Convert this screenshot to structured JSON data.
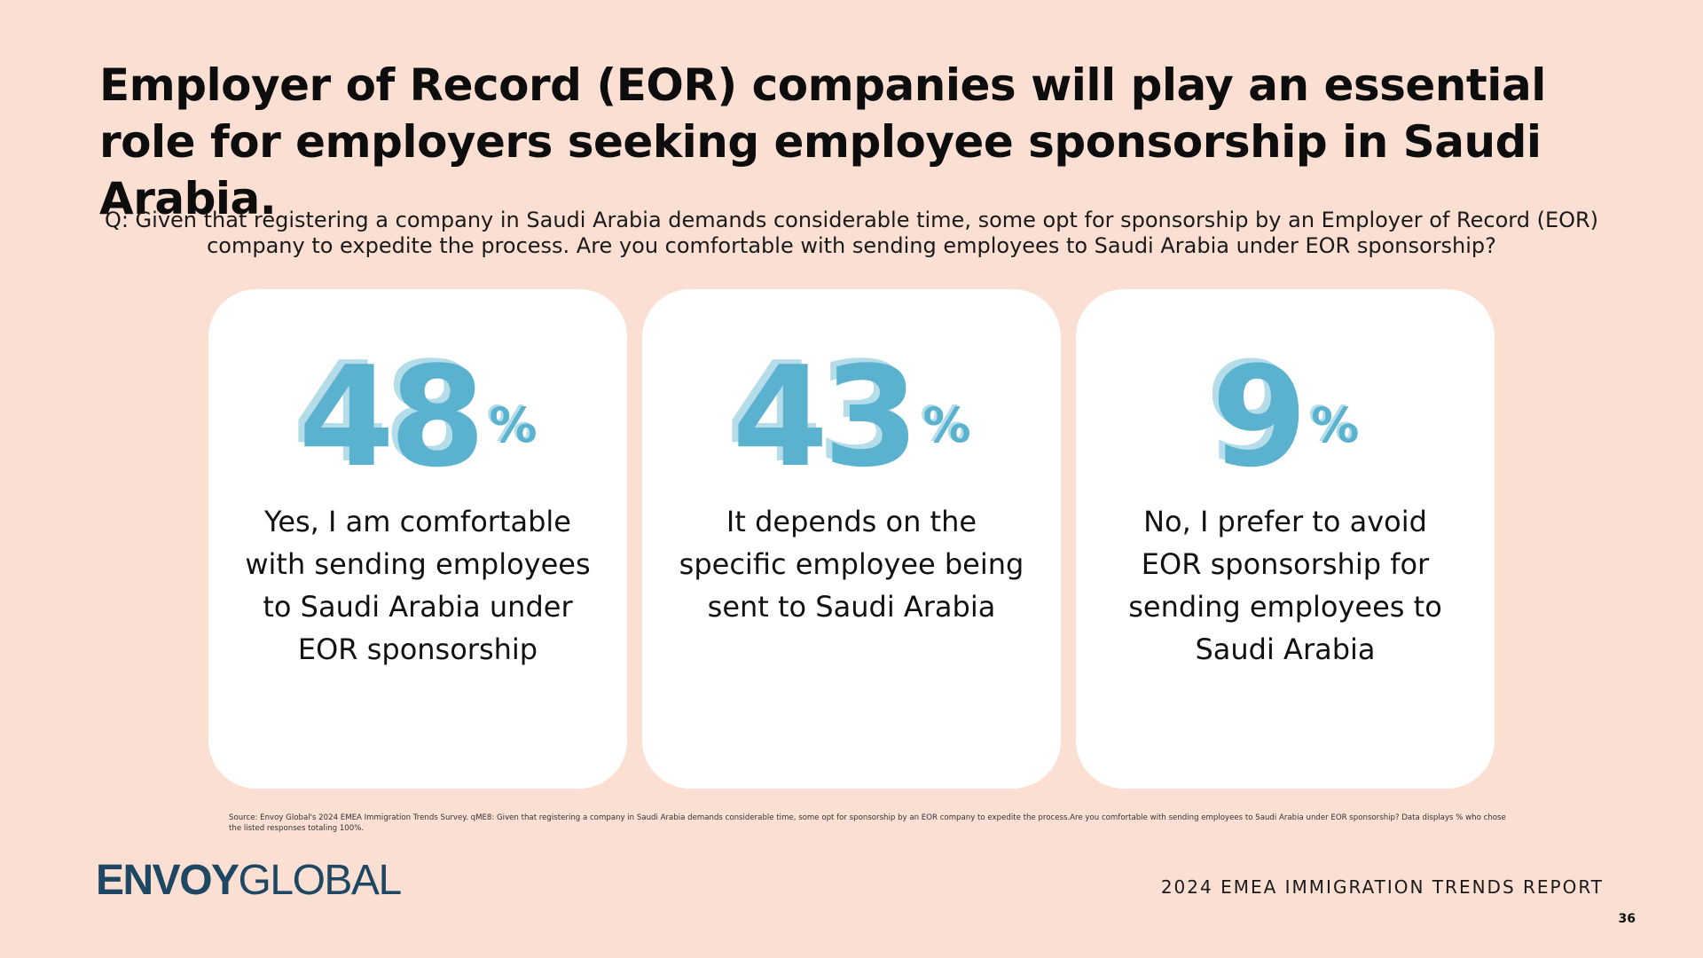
{
  "slide": {
    "title": "Employer of Record (EOR) companies will play an essential role for employers seeking employee sponsorship in Saudi Arabia.",
    "question": "Q: Given that registering a company in Saudi Arabia demands considerable time, some opt for sponsorship by an Employer of Record (EOR) company to expedite the process. Are you comfortable with sending employees to Saudi Arabia under EOR sponsorship?"
  },
  "cards": [
    {
      "value": "48",
      "unit": "%",
      "label": "Yes, I am comfortable with sending employees to Saudi Arabia under EOR sponsorship"
    },
    {
      "value": "43",
      "unit": "%",
      "label": "It depends on the specific employee being sent to Saudi Arabia"
    },
    {
      "value": "9",
      "unit": "%",
      "label": "No, I prefer to avoid EOR sponsorship for sending employees to Saudi Arabia"
    }
  ],
  "source": "Source: Envoy Global's 2024 EMEA Immigration Trends Survey. qME8: Given that registering a company in Saudi Arabia demands considerable time, some opt for sponsorship by an EOR company to expedite the process.Are you comfortable with sending employees to Saudi Arabia under EOR sponsorship? Data displays % who chose the listed responses totaling 100%.",
  "footer": {
    "logo_bold": "ENVOY",
    "logo_light": "GLOBAL",
    "report_title": "2024 EMEA IMMIGRATION TRENDS REPORT",
    "page_number": "36"
  },
  "colors": {
    "background": "#fbdfd3",
    "accent": "#5ab2cf",
    "accent_shadow": "#b4dce9",
    "logo": "#1d4763"
  }
}
